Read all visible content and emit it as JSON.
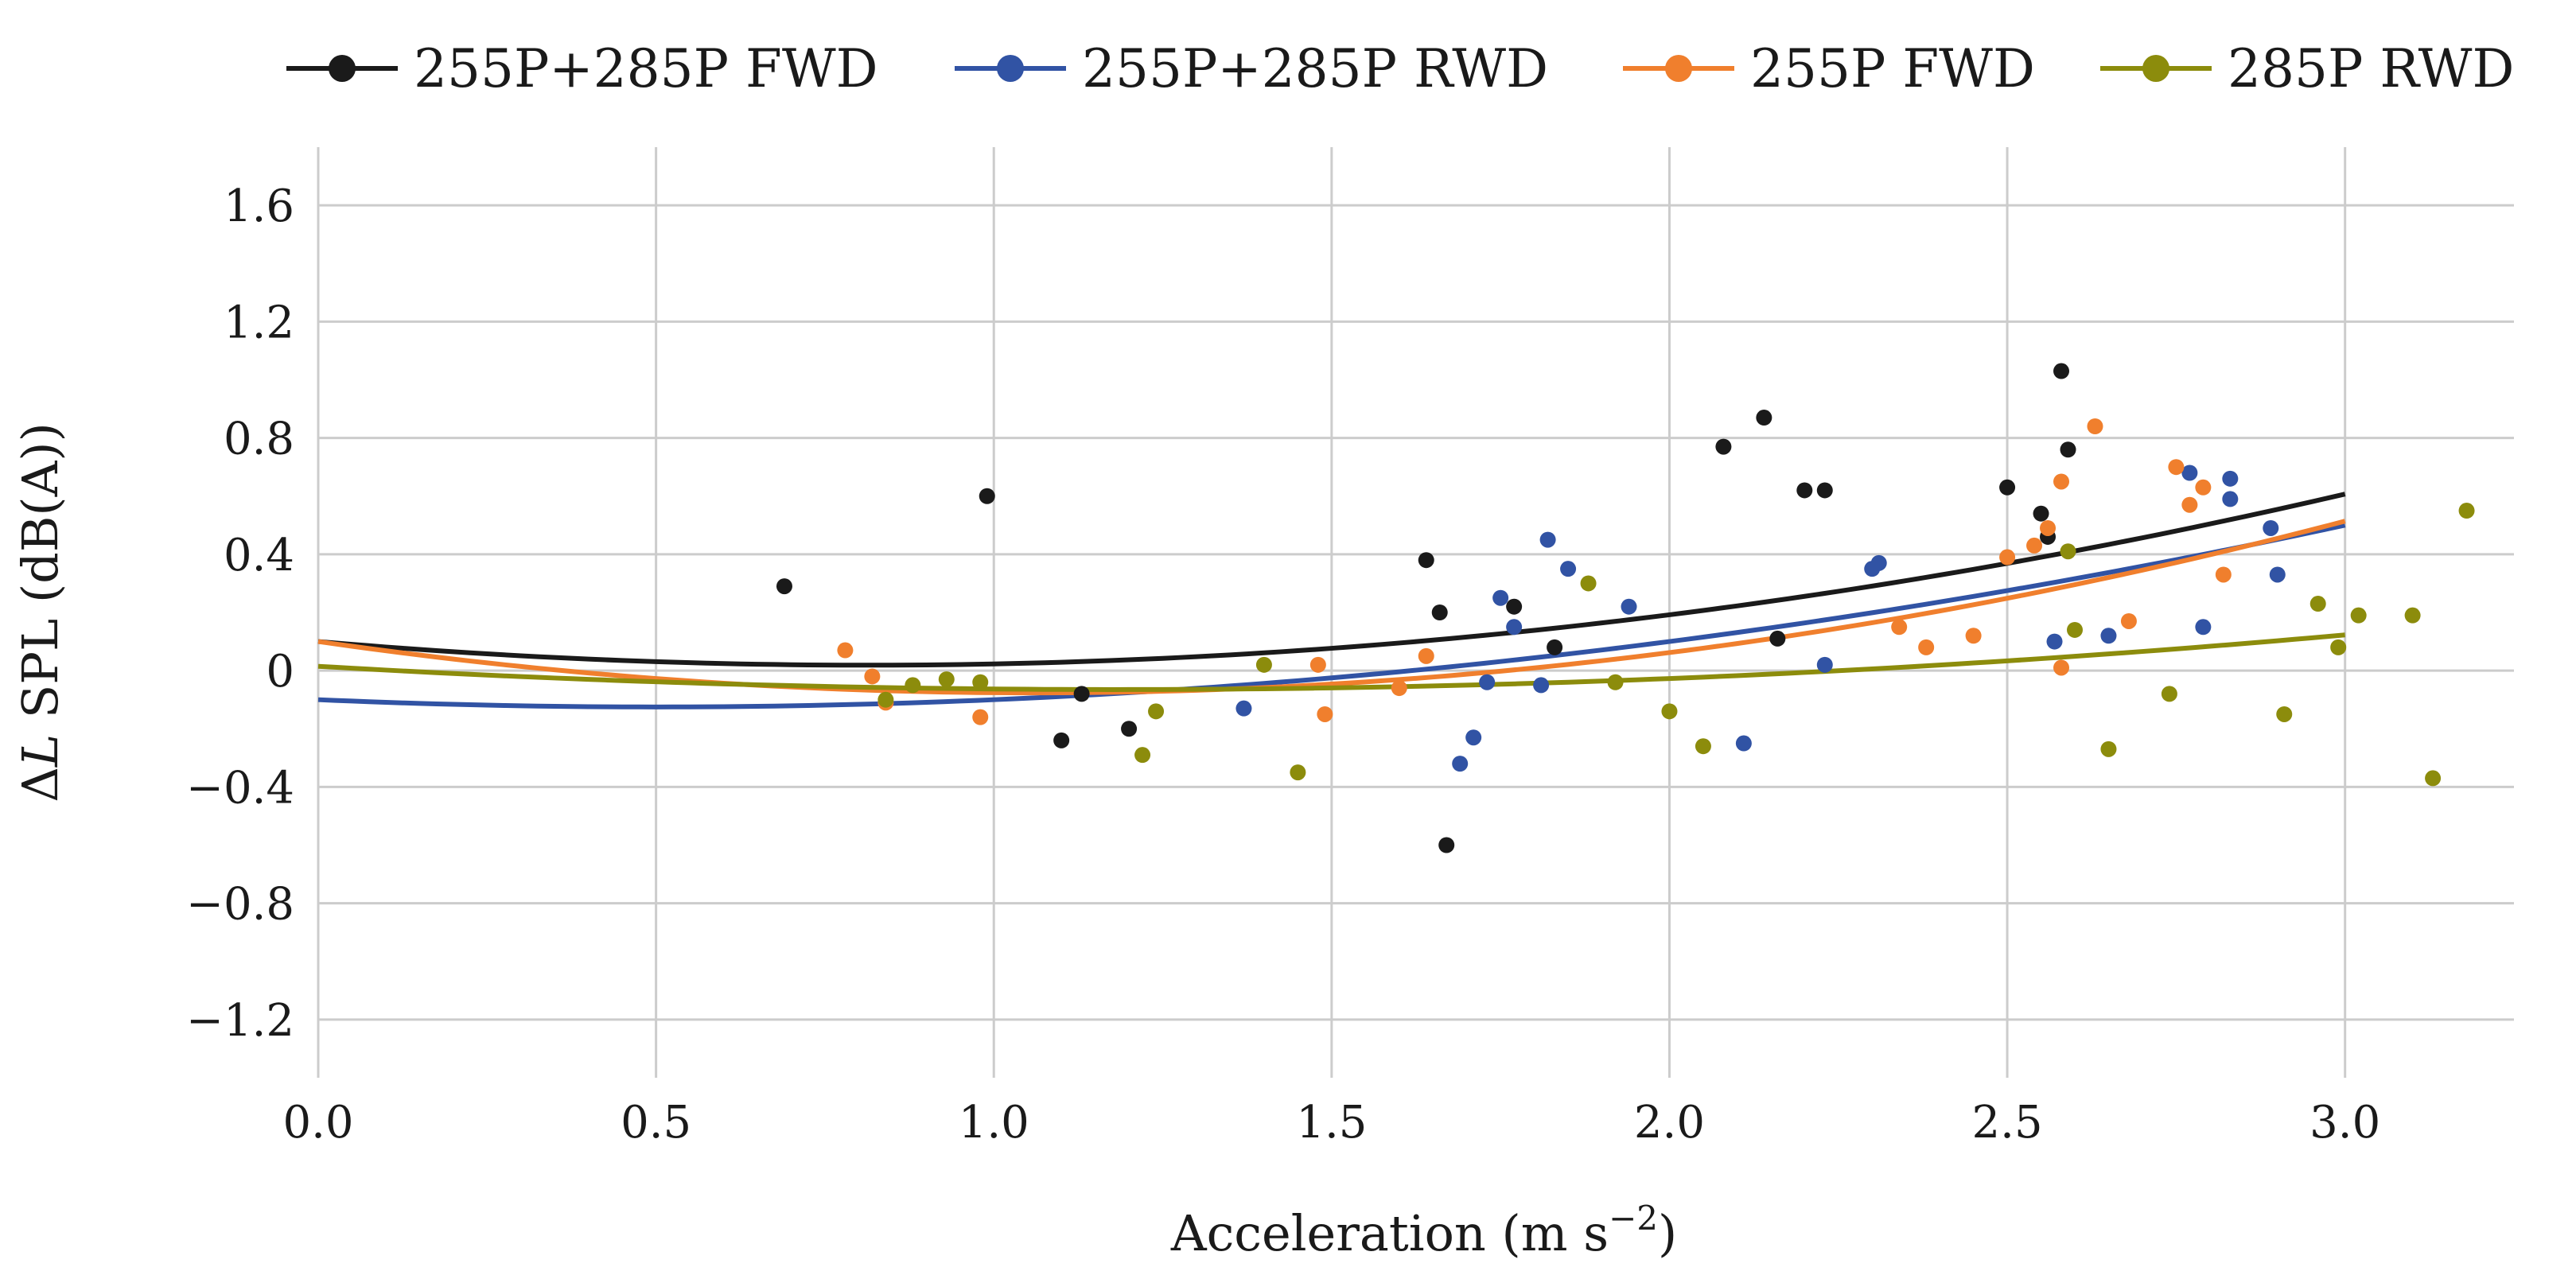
{
  "chart_data": {
    "type": "scatter",
    "title": "",
    "xlabel_text": "Acceleration (m s",
    "xlabel_exp": "−2",
    "xlabel_close": ")",
    "ylabel_prefix": "Δ",
    "ylabel_italic": "L",
    "ylabel_rest": " SPL (dB(A))",
    "xlim": [
      0,
      3.25
    ],
    "ylim": [
      -1.4,
      1.8
    ],
    "xticks": [
      0.0,
      0.5,
      1.0,
      1.5,
      2.0,
      2.5,
      3.0
    ],
    "xtick_labels": [
      "0.0",
      "0.5",
      "1.0",
      "1.5",
      "2.0",
      "2.5",
      "3.0"
    ],
    "yticks": [
      1.6,
      1.2,
      0.8,
      0.4,
      0,
      -0.4,
      -0.8,
      -1.2
    ],
    "ytick_labels": [
      "1.6",
      "1.2",
      "0.8",
      "0.4",
      "0",
      "−0.4",
      "−0.8",
      "−1.2"
    ],
    "grid": true,
    "legend_position": "top",
    "series": [
      {
        "name": "255P+285P FWD",
        "color": "#1a1a1a",
        "fit": {
          "a": 0.123,
          "b": -0.2,
          "c": 0.1,
          "x_range": [
            0,
            3.0
          ]
        },
        "points": [
          [
            0.69,
            0.29
          ],
          [
            0.99,
            0.6
          ],
          [
            1.1,
            -0.24
          ],
          [
            1.13,
            -0.08
          ],
          [
            1.2,
            -0.2
          ],
          [
            1.64,
            0.38
          ],
          [
            1.66,
            0.2
          ],
          [
            1.67,
            -0.6
          ],
          [
            1.77,
            0.22
          ],
          [
            1.83,
            0.08
          ],
          [
            2.08,
            0.77
          ],
          [
            2.14,
            0.87
          ],
          [
            2.16,
            0.11
          ],
          [
            2.2,
            0.62
          ],
          [
            2.23,
            0.62
          ],
          [
            2.5,
            0.63
          ],
          [
            2.55,
            0.54
          ],
          [
            2.56,
            0.46
          ],
          [
            2.58,
            1.03
          ],
          [
            2.59,
            0.76
          ]
        ]
      },
      {
        "name": "255P+285P RWD",
        "color": "#3153a4",
        "fit": {
          "a": 0.1,
          "b": -0.1,
          "c": -0.1,
          "x_range": [
            0,
            3.0
          ]
        },
        "points": [
          [
            1.37,
            -0.13
          ],
          [
            1.69,
            -0.32
          ],
          [
            1.71,
            -0.23
          ],
          [
            1.73,
            -0.04
          ],
          [
            1.75,
            0.25
          ],
          [
            1.77,
            0.15
          ],
          [
            1.81,
            -0.05
          ],
          [
            1.82,
            0.45
          ],
          [
            1.85,
            0.35
          ],
          [
            1.94,
            0.22
          ],
          [
            2.11,
            -0.25
          ],
          [
            2.23,
            0.02
          ],
          [
            2.3,
            0.35
          ],
          [
            2.31,
            0.37
          ],
          [
            2.57,
            0.1
          ],
          [
            2.65,
            0.12
          ],
          [
            2.77,
            0.68
          ],
          [
            2.79,
            0.15
          ],
          [
            2.83,
            0.66
          ],
          [
            2.83,
            0.59
          ],
          [
            2.89,
            0.49
          ],
          [
            2.9,
            0.33
          ]
        ]
      },
      {
        "name": "255P FWD",
        "color": "#f07f2d",
        "fit": {
          "a": 0.157,
          "b": -0.333,
          "c": 0.1,
          "x_range": [
            0,
            3.0
          ]
        },
        "points": [
          [
            0.78,
            0.07
          ],
          [
            0.82,
            -0.02
          ],
          [
            0.84,
            -0.11
          ],
          [
            0.98,
            -0.16
          ],
          [
            1.48,
            0.02
          ],
          [
            1.49,
            -0.15
          ],
          [
            1.6,
            -0.06
          ],
          [
            1.64,
            0.05
          ],
          [
            2.34,
            0.15
          ],
          [
            2.38,
            0.08
          ],
          [
            2.45,
            0.12
          ],
          [
            2.5,
            0.39
          ],
          [
            2.54,
            0.43
          ],
          [
            2.56,
            0.49
          ],
          [
            2.58,
            0.65
          ],
          [
            2.58,
            0.01
          ],
          [
            2.63,
            0.84
          ],
          [
            2.68,
            0.17
          ],
          [
            2.75,
            0.7
          ],
          [
            2.77,
            0.57
          ],
          [
            2.79,
            0.63
          ],
          [
            2.82,
            0.33
          ]
        ]
      },
      {
        "name": "285P RWD",
        "color": "#8c8c0c",
        "fit": {
          "a": 0.057,
          "b": -0.135,
          "c": 0.0148,
          "x_range": [
            0,
            3.0
          ]
        },
        "points": [
          [
            0.84,
            -0.1
          ],
          [
            0.88,
            -0.05
          ],
          [
            0.93,
            -0.03
          ],
          [
            0.98,
            -0.04
          ],
          [
            1.22,
            -0.29
          ],
          [
            1.24,
            -0.14
          ],
          [
            1.4,
            0.02
          ],
          [
            1.45,
            -0.35
          ],
          [
            1.88,
            0.3
          ],
          [
            1.92,
            -0.04
          ],
          [
            2.0,
            -0.14
          ],
          [
            2.05,
            -0.26
          ],
          [
            2.59,
            0.41
          ],
          [
            2.6,
            0.14
          ],
          [
            2.65,
            -0.27
          ],
          [
            2.74,
            -0.08
          ],
          [
            2.91,
            -0.15
          ],
          [
            2.96,
            0.23
          ],
          [
            2.99,
            0.08
          ],
          [
            3.02,
            0.19
          ],
          [
            3.1,
            0.19
          ],
          [
            3.13,
            -0.37
          ],
          [
            3.18,
            0.55
          ]
        ]
      }
    ]
  }
}
